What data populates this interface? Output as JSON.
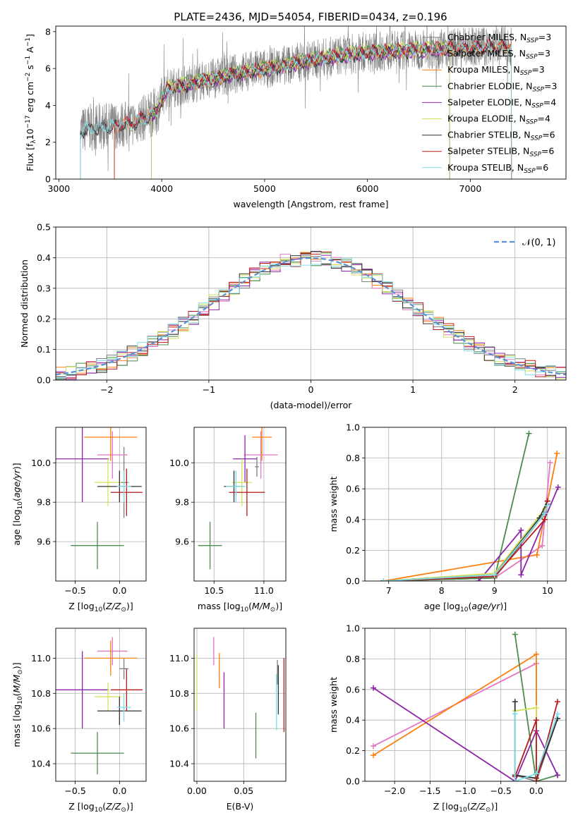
{
  "figure": {
    "title": "PLATE=2436, MJD=54054, FIBERID=0434, z=0.196"
  },
  "legend_models": [
    {
      "label": "Chabrier MILES, N",
      "sub": "SSP",
      "suffix": "=3",
      "color": "#7f7f7f"
    },
    {
      "label": "Salpeter MILES, N",
      "sub": "SSP",
      "suffix": "=3",
      "color": "#e377c2"
    },
    {
      "label": "Kroupa MILES, N",
      "sub": "SSP",
      "suffix": "=3",
      "color": "#ff7f0e"
    },
    {
      "label": "Chabrier ELODIE, N",
      "sub": "SSP",
      "suffix": "=3",
      "color": "#4a8c4a"
    },
    {
      "label": "Salpeter ELODIE, N",
      "sub": "SSP",
      "suffix": "=4",
      "color": "#8e24aa"
    },
    {
      "label": "Kroupa ELODIE, N",
      "sub": "SSP",
      "suffix": "=4",
      "color": "#d4e157"
    },
    {
      "label": "Chabrier STELIB, N",
      "sub": "SSP",
      "suffix": "=6",
      "color": "#333333"
    },
    {
      "label": "Salpeter STELIB, N",
      "sub": "SSP",
      "suffix": "=6",
      "color": "#b71c1c"
    },
    {
      "label": "Kroupa STELIB, N",
      "sub": "SSP",
      "suffix": "=6",
      "color": "#80deea"
    }
  ],
  "chart_data": [
    {
      "id": "spectrum",
      "type": "line",
      "xlabel": "wavelength [Angstrom, rest frame]",
      "ylabel": "Flux [f_λ 10^-17 erg cm^-2 s^-1 A^-1]",
      "xlim": [
        2970,
        7930
      ],
      "ylim": [
        0,
        8.3
      ],
      "xticks": [
        3000,
        4000,
        5000,
        6000,
        7000
      ],
      "yticks": [
        0,
        2,
        4,
        6,
        8
      ],
      "grid": false,
      "legend_placement": "top-right",
      "continuum": {
        "x": [
          3210,
          3300,
          3500,
          3700,
          3850,
          3950,
          4050,
          4300,
          4600,
          5000,
          5300,
          5600,
          6000,
          6400,
          6800,
          7200,
          7400
        ],
        "y": [
          2.6,
          2.8,
          2.9,
          3.0,
          3.4,
          3.7,
          4.9,
          5.2,
          5.6,
          6.0,
          6.3,
          6.6,
          6.9,
          7.0,
          7.1,
          7.2,
          7.2
        ]
      },
      "series": [
        {
          "model": 0,
          "start": 3210,
          "end": 7400
        },
        {
          "model": 1,
          "start": 3540,
          "end": 7400
        },
        {
          "model": 2,
          "start": 3540,
          "end": 7400
        },
        {
          "model": 3,
          "start": 3900,
          "end": 6800
        },
        {
          "model": 4,
          "start": 3900,
          "end": 6800
        },
        {
          "model": 5,
          "start": 3900,
          "end": 6800
        },
        {
          "model": 6,
          "start": 3210,
          "end": 7400
        },
        {
          "model": 7,
          "start": 3540,
          "end": 7400
        },
        {
          "model": 8,
          "start": 3210,
          "end": 7400
        }
      ]
    },
    {
      "id": "residuals",
      "type": "histogram",
      "xlabel": "(data-model)/error",
      "ylabel": "Normed distribution",
      "xlim": [
        -2.5,
        2.5
      ],
      "ylim": [
        0,
        0.5
      ],
      "xticks": [
        -2,
        -1,
        0,
        1,
        2
      ],
      "yticks": [
        0.0,
        0.1,
        0.2,
        0.3,
        0.4,
        0.5
      ],
      "grid": true,
      "bin_width": 0.1,
      "reference": {
        "label": "𝒩(0, 1)",
        "mean": 0,
        "sigma": 1,
        "color": "#5b8fd6"
      },
      "legend_placement": "top-right"
    },
    {
      "id": "age_vs_Z",
      "type": "scatter",
      "xlabel": "Z [log10(Z/Z⊙)]",
      "ylabel": "age [log10(age/yr)]",
      "xlim": [
        -0.72,
        0.3
      ],
      "ylim": [
        9.4,
        10.18
      ],
      "xticks": [
        -0.5,
        0.0
      ],
      "yticks": [
        9.6,
        9.8,
        10.0
      ],
      "grid": true,
      "points": [
        {
          "model": 0,
          "x": 0.05,
          "y": 9.9,
          "xerr": 0.05,
          "yerr": 0.18
        },
        {
          "model": 1,
          "x": -0.08,
          "y": 10.04,
          "xerr": 0.17,
          "yerr": 0.12
        },
        {
          "model": 2,
          "x": -0.1,
          "y": 10.13,
          "xerr": 0.3,
          "yerr": 0.12
        },
        {
          "model": 3,
          "x": -0.25,
          "y": 9.58,
          "xerr": 0.3,
          "yerr": 0.12
        },
        {
          "model": 4,
          "x": -0.42,
          "y": 10.02,
          "xerr": 0.3,
          "yerr": 0.22
        },
        {
          "model": 5,
          "x": -0.13,
          "y": 9.9,
          "xerr": 0.15,
          "yerr": 0.12
        },
        {
          "model": 6,
          "x": 0.0,
          "y": 9.88,
          "xerr": 0.25,
          "yerr": 0.08
        },
        {
          "model": 7,
          "x": 0.08,
          "y": 9.85,
          "xerr": 0.18,
          "yerr": 0.12
        },
        {
          "model": 8,
          "x": 0.05,
          "y": 9.88,
          "xerr": 0.08,
          "yerr": 0.08
        }
      ]
    },
    {
      "id": "age_vs_mass",
      "type": "scatter",
      "xlabel": "mass [log10(M/M⊙)]",
      "ylabel": "",
      "xlim": [
        10.3,
        11.22
      ],
      "ylim": [
        9.4,
        10.18
      ],
      "xticks": [
        10.5,
        11.0
      ],
      "yticks": [
        9.6,
        9.8,
        10.0
      ],
      "grid": true,
      "points": [
        {
          "model": 0,
          "x": 10.93,
          "y": 9.98,
          "xerr": 0.02,
          "yerr": 0.05
        },
        {
          "model": 1,
          "x": 10.97,
          "y": 10.04,
          "xerr": 0.17,
          "yerr": 0.12
        },
        {
          "model": 2,
          "x": 10.98,
          "y": 10.13,
          "xerr": 0.1,
          "yerr": 0.12
        },
        {
          "model": 3,
          "x": 10.46,
          "y": 9.58,
          "xerr": 0.12,
          "yerr": 0.12
        },
        {
          "model": 4,
          "x": 10.81,
          "y": 10.02,
          "xerr": 0.12,
          "yerr": 0.12
        },
        {
          "model": 5,
          "x": 10.78,
          "y": 9.9,
          "xerr": 0.1,
          "yerr": 0.12
        },
        {
          "model": 6,
          "x": 10.7,
          "y": 9.88,
          "xerr": 0.1,
          "yerr": 0.08
        },
        {
          "model": 7,
          "x": 10.83,
          "y": 9.85,
          "xerr": 0.18,
          "yerr": 0.12
        },
        {
          "model": 8,
          "x": 10.72,
          "y": 9.88,
          "xerr": 0.1,
          "yerr": 0.08
        }
      ]
    },
    {
      "id": "weights_vs_age",
      "type": "line",
      "xlabel": "age [log10(age/yr)]",
      "ylabel": "mass weight",
      "xlim": [
        6.55,
        10.35
      ],
      "ylim": [
        0,
        1.0
      ],
      "xticks": [
        7,
        8,
        9,
        10
      ],
      "yticks": [
        0.0,
        0.2,
        0.4,
        0.6,
        0.8,
        1.0
      ],
      "grid": true,
      "series": [
        {
          "model": 0,
          "x": [
            6.9,
            9.0,
            9.9,
            10.0
          ],
          "y": [
            0.0,
            0.02,
            0.42,
            0.5
          ]
        },
        {
          "model": 1,
          "x": [
            6.9,
            9.0,
            9.9,
            10.05
          ],
          "y": [
            0.0,
            0.02,
            0.23,
            0.77
          ]
        },
        {
          "model": 2,
          "x": [
            6.9,
            9.8,
            10.18
          ],
          "y": [
            0.0,
            0.17,
            0.83
          ]
        },
        {
          "model": 3,
          "x": [
            6.9,
            9.0,
            9.65
          ],
          "y": [
            0.0,
            0.02,
            0.96
          ]
        },
        {
          "model": 4,
          "x": [
            8.7,
            9.5,
            9.5,
            10.2
          ],
          "y": [
            0.0,
            0.33,
            0.04,
            0.61
          ]
        },
        {
          "model": 5,
          "x": [
            6.9,
            9.0,
            9.95
          ],
          "y": [
            0.0,
            0.05,
            0.47
          ]
        },
        {
          "model": 6,
          "x": [
            6.9,
            9.0,
            9.85,
            10.0
          ],
          "y": [
            0.0,
            0.04,
            0.41,
            0.52
          ]
        },
        {
          "model": 7,
          "x": [
            6.9,
            9.0,
            9.95,
            10.0
          ],
          "y": [
            0.0,
            0.03,
            0.4,
            0.52
          ]
        },
        {
          "model": 8,
          "x": [
            6.9,
            9.0,
            9.95,
            10.0
          ],
          "y": [
            0.0,
            0.04,
            0.44,
            0.49
          ]
        }
      ]
    },
    {
      "id": "mass_vs_Z",
      "type": "scatter",
      "xlabel": "Z [log10(Z/Z⊙)]",
      "ylabel": "mass [log10(M/M⊙)]",
      "xlim": [
        -0.72,
        0.3
      ],
      "ylim": [
        10.3,
        11.17
      ],
      "xticks": [
        -0.5,
        0.0
      ],
      "yticks": [
        10.4,
        10.6,
        10.8,
        11.0
      ],
      "grid": true,
      "points": [
        {
          "model": 0,
          "x": 0.05,
          "y": 10.94,
          "xerr": 0.05,
          "yerr": 0.06
        },
        {
          "model": 1,
          "x": -0.08,
          "y": 11.04,
          "xerr": 0.17,
          "yerr": 0.08
        },
        {
          "model": 2,
          "x": -0.1,
          "y": 11.0,
          "xerr": 0.3,
          "yerr": 0.1
        },
        {
          "model": 3,
          "x": -0.25,
          "y": 10.46,
          "xerr": 0.3,
          "yerr": 0.12
        },
        {
          "model": 4,
          "x": -0.42,
          "y": 10.82,
          "xerr": 0.3,
          "yerr": 0.22
        },
        {
          "model": 5,
          "x": -0.13,
          "y": 10.78,
          "xerr": 0.15,
          "yerr": 0.08
        },
        {
          "model": 6,
          "x": 0.0,
          "y": 10.7,
          "xerr": 0.25,
          "yerr": 0.08
        },
        {
          "model": 7,
          "x": 0.08,
          "y": 10.82,
          "xerr": 0.18,
          "yerr": 0.12
        },
        {
          "model": 8,
          "x": 0.05,
          "y": 10.72,
          "xerr": 0.08,
          "yerr": 0.08
        }
      ]
    },
    {
      "id": "mass_vs_ebv",
      "type": "scatter",
      "xlabel": "E(B-V)",
      "ylabel": "",
      "xlim": [
        -0.003,
        0.095
      ],
      "ylim": [
        10.3,
        11.17
      ],
      "xticks": [
        0.0,
        0.05
      ],
      "xticklabels": [
        "0.00",
        "0.05"
      ],
      "yticks": [
        10.4,
        10.6,
        10.8,
        11.0
      ],
      "grid": true,
      "points": [
        {
          "model": 0,
          "x": 0.086,
          "y": 10.92,
          "xerr": 0,
          "yerr": 0.07
        },
        {
          "model": 1,
          "x": 0.018,
          "y": 11.04,
          "xerr": 0,
          "yerr": 0.08
        },
        {
          "model": 2,
          "x": 0.024,
          "y": 10.93,
          "xerr": 0,
          "yerr": 0.1
        },
        {
          "model": 3,
          "x": 0.063,
          "y": 10.56,
          "xerr": 0,
          "yerr": 0.13
        },
        {
          "model": 4,
          "x": 0.029,
          "y": 10.76,
          "xerr": 0,
          "yerr": 0.16
        },
        {
          "model": 5,
          "x": 0.0,
          "y": 10.86,
          "xerr": 0,
          "yerr": 0.16
        },
        {
          "model": 6,
          "x": 0.087,
          "y": 10.82,
          "xerr": 0,
          "yerr": 0.14
        },
        {
          "model": 7,
          "x": 0.093,
          "y": 10.79,
          "xerr": 0,
          "yerr": 0.21
        },
        {
          "model": 8,
          "x": 0.085,
          "y": 10.75,
          "xerr": 0,
          "yerr": 0.16
        }
      ]
    },
    {
      "id": "weights_vs_Z",
      "type": "line",
      "xlabel": "Z [log10(Z/Z⊙)]",
      "ylabel": "mass weight",
      "xlim": [
        -2.42,
        0.42
      ],
      "ylim": [
        0,
        1.0
      ],
      "xticks": [
        -2.0,
        -1.5,
        -1.0,
        -0.5,
        0.0
      ],
      "yticks": [
        0.0,
        0.2,
        0.4,
        0.6,
        0.8,
        1.0
      ],
      "grid": true,
      "series": [
        {
          "model": 0,
          "x": [
            -0.3,
            0.0,
            0.3
          ],
          "y": [
            0.04,
            0.0,
            0.41
          ]
        },
        {
          "model": 1,
          "x": [
            -2.3,
            0.0,
            0.0
          ],
          "y": [
            0.23,
            0.77,
            0.0
          ]
        },
        {
          "model": 2,
          "x": [
            -2.3,
            0.0,
            0.0
          ],
          "y": [
            0.17,
            0.83,
            0.0
          ]
        },
        {
          "model": 3,
          "x": [
            -0.3,
            0.0,
            0.3
          ],
          "y": [
            0.96,
            0.0,
            0.04
          ]
        },
        {
          "model": 4,
          "x": [
            -2.3,
            -0.3,
            0.0,
            0.3
          ],
          "y": [
            0.61,
            0.0,
            0.33,
            0.04
          ]
        },
        {
          "model": 5,
          "x": [
            -0.3,
            0.0,
            0.0
          ],
          "y": [
            0.46,
            0.48,
            0.05
          ]
        },
        {
          "model": 6,
          "x": [
            -0.3,
            -0.3,
            0.0,
            0.3
          ],
          "y": [
            0.52,
            0.04,
            0.02,
            0.41
          ]
        },
        {
          "model": 7,
          "x": [
            -0.3,
            0.0,
            0.0,
            0.3
          ],
          "y": [
            0.03,
            0.4,
            0.0,
            0.52
          ]
        },
        {
          "model": 8,
          "x": [
            -0.3,
            -0.3,
            0.0,
            0.3
          ],
          "y": [
            0.44,
            0.0,
            0.05,
            0.44
          ]
        }
      ]
    }
  ]
}
